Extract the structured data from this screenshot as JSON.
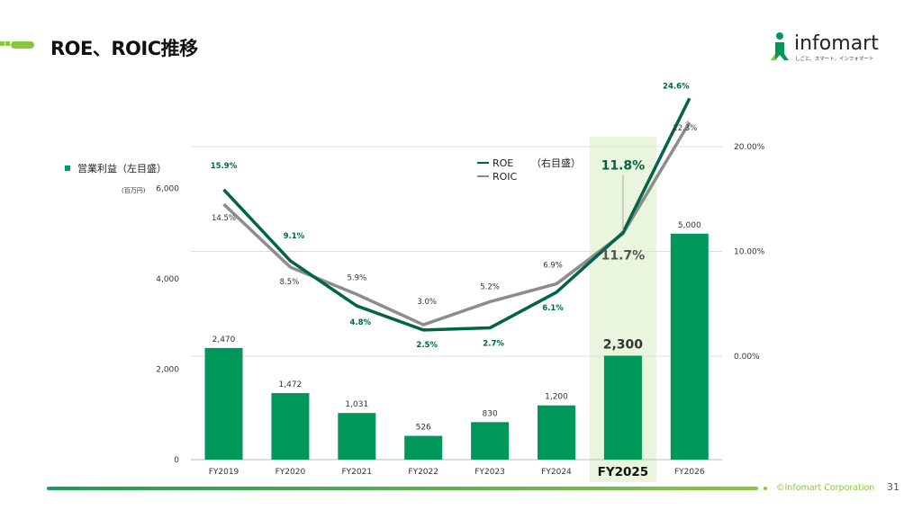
{
  "header": {
    "title": "ROE、ROIC推移",
    "logo_text": "infomart",
    "logo_tagline": "しごと、スマート。インフォマート"
  },
  "footer": {
    "copyright": "©Infomart Corporation",
    "page_number": "31"
  },
  "colors": {
    "bar": "#00975a",
    "roe_line": "#00634a",
    "roic_line": "#8c8c8c",
    "highlight": "#e9f5dc",
    "accent_light": "#8cc63f"
  },
  "chart_data": {
    "type": "bar",
    "categories": [
      "FY2019",
      "FY2020",
      "FY2021",
      "FY2022",
      "FY2023",
      "FY2024",
      "FY2025",
      "FY2026"
    ],
    "highlight_category": "FY2025",
    "bar_series": {
      "name": "営業利益（左目盛）",
      "unit": "(百万円)",
      "values": [
        2470,
        1472,
        1031,
        526,
        830,
        1200,
        2300,
        5000
      ],
      "labels": [
        "2,470",
        "1,472",
        "1,031",
        "526",
        "830",
        "1,200",
        "2,300",
        "5,000"
      ]
    },
    "left_axis": {
      "ticks": [
        "0",
        "2,000",
        "4,000",
        "6,000"
      ],
      "tick_values": [
        0,
        2000,
        4000,
        6000
      ],
      "ylim": [
        0,
        6000
      ]
    },
    "right_axis": {
      "ticks": [
        "0.00%",
        "10.00%",
        "20.00%"
      ],
      "tick_values": [
        0,
        10,
        20
      ],
      "ylim": [
        -10,
        20
      ]
    },
    "line_series": [
      {
        "name": "ROE",
        "values": [
          15.9,
          9.1,
          4.8,
          2.5,
          2.7,
          6.1,
          11.8,
          24.6
        ],
        "labels": [
          "15.9%",
          "9.1%",
          "4.8%",
          "2.5%",
          "2.7%",
          "6.1%",
          "11.8%",
          "24.6%"
        ]
      },
      {
        "name": "ROIC",
        "values": [
          14.5,
          8.5,
          5.9,
          3.0,
          5.2,
          6.9,
          11.7,
          22.3
        ],
        "labels": [
          "14.5%",
          "8.5%",
          "5.9%",
          "3.0%",
          "5.2%",
          "6.9%",
          "11.7%",
          "22.3%"
        ]
      }
    ],
    "line_legend_suffix": "（右目盛）",
    "legend_position": "top-center",
    "grid": true
  }
}
